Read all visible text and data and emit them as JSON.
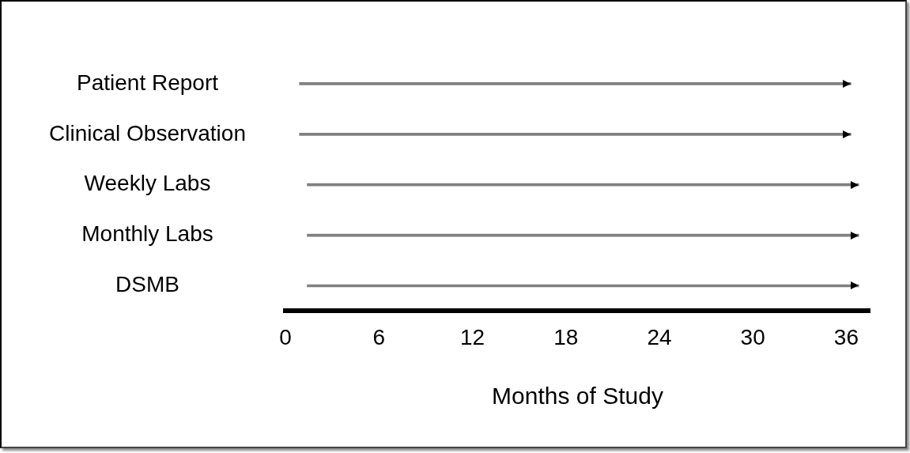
{
  "chart_data": {
    "type": "bar",
    "orientation": "horizontal",
    "xlabel": "Months of Study",
    "categories": [
      "Patient Report",
      "Clinical Observation",
      "Weekly Labs",
      "Monthly Labs",
      "DSMB"
    ],
    "base": [
      0.9,
      0.9,
      1.4,
      1.4,
      1.4
    ],
    "values": [
      35.4,
      35.4,
      35.4,
      35.4,
      35.4
    ],
    "color": "#808080",
    "xlim": [
      0,
      37.5
    ],
    "xticks": [
      0,
      6,
      12,
      18,
      24,
      30,
      36
    ],
    "grid": false,
    "legend": false
  }
}
